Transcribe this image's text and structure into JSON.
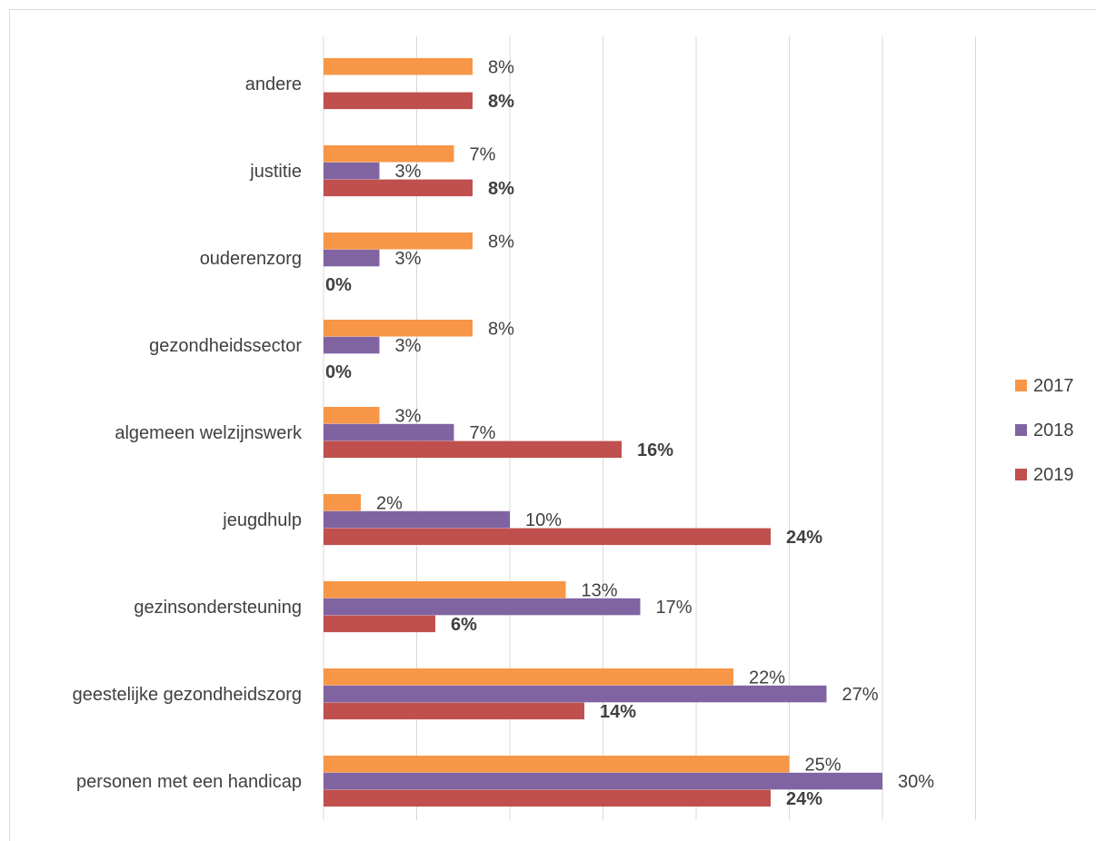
{
  "chart_data": {
    "type": "bar",
    "orientation": "horizontal",
    "categories": [
      "personen met een handicap",
      "geestelijke gezondheidszorg",
      "gezinsondersteuning",
      "jeugdhulp",
      "algemeen welzijnswerk",
      "gezondheidssector",
      "ouderenzorg",
      "justitie",
      "andere"
    ],
    "series": [
      {
        "name": "2017",
        "color": "#F79646",
        "values": [
          25,
          22,
          13,
          2,
          3,
          8,
          8,
          7,
          8
        ],
        "labels": [
          "25%",
          "22%",
          "13%",
          "2%",
          "3%",
          "8%",
          "8%",
          "7%",
          "8%"
        ]
      },
      {
        "name": "2018",
        "color": "#8064A2",
        "values": [
          30,
          27,
          17,
          10,
          7,
          3,
          3,
          3,
          null
        ],
        "labels": [
          "30%",
          "27%",
          "17%",
          "10%",
          "7%",
          "3%",
          "3%",
          "3%",
          null
        ]
      },
      {
        "name": "2019",
        "color": "#C0504D",
        "values": [
          24,
          14,
          6,
          24,
          16,
          0,
          0,
          8,
          8
        ],
        "labels": [
          "24%",
          "14%",
          "6%",
          "24%",
          "16%",
          "0%",
          "0%",
          "8%",
          "8%"
        ],
        "labels_bold": true
      }
    ],
    "xlim": [
      0,
      35
    ],
    "grid": true,
    "legend_position": "right"
  }
}
